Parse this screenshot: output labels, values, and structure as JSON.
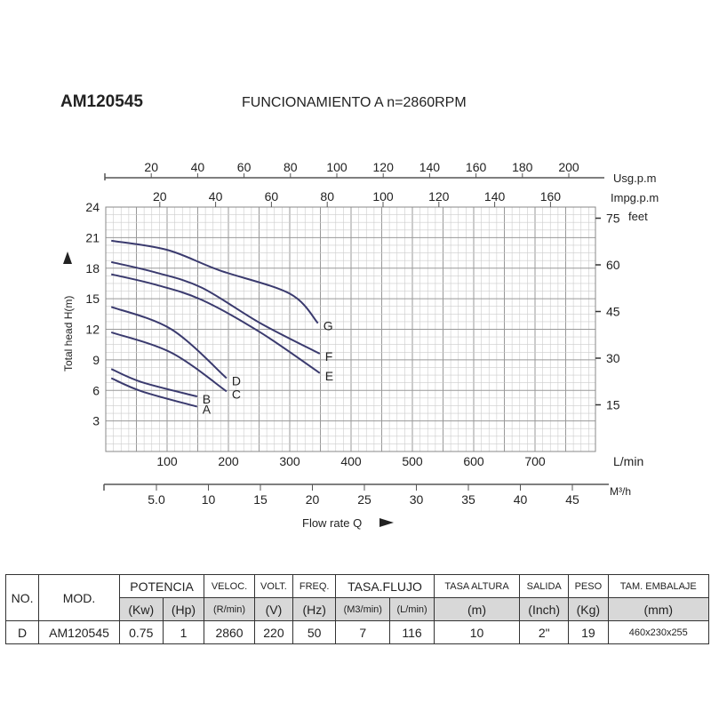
{
  "header": {
    "model": "AM120545",
    "subtitle": "FUNCIONAMIENTO A n=2860RPM"
  },
  "chart_data": {
    "type": "line",
    "xlabel": "Flow rate Q",
    "ylabel": "Total head H(m)",
    "x_unit": "L/min",
    "xlim": [
      0,
      795
    ],
    "ylim": [
      0,
      24
    ],
    "x_ticks": [
      100,
      200,
      300,
      400,
      500,
      600,
      700
    ],
    "y_ticks": [
      3,
      6,
      9,
      12,
      15,
      18,
      21,
      24
    ],
    "grid": true,
    "secondary_axes": {
      "usgpm": {
        "label": "Usg.p.m",
        "ticks": [
          20,
          40,
          60,
          80,
          100,
          120,
          140,
          160,
          180,
          200
        ]
      },
      "impgpm": {
        "label": "Impg.p.m",
        "ticks": [
          20,
          40,
          60,
          80,
          100,
          120,
          140,
          160
        ]
      },
      "feet": {
        "label": "feet",
        "ticks": [
          15,
          30,
          45,
          60,
          75
        ]
      },
      "m3h": {
        "label": "M³/h",
        "ticks": [
          "5.0",
          "10",
          "15",
          "20",
          "25",
          "30",
          "35",
          "40",
          "45"
        ]
      }
    },
    "series": [
      {
        "name": "G",
        "x": [
          9,
          100,
          185,
          300,
          346
        ],
        "y": [
          20.7,
          19.8,
          17.8,
          15.5,
          12.6
        ]
      },
      {
        "name": "F",
        "x": [
          9,
          80,
          156,
          252,
          349
        ],
        "y": [
          18.6,
          17.6,
          16.1,
          12.6,
          9.6
        ]
      },
      {
        "name": "E",
        "x": [
          9,
          80,
          156,
          252,
          349
        ],
        "y": [
          17.4,
          16.4,
          14.9,
          11.7,
          7.7
        ]
      },
      {
        "name": "D",
        "x": [
          9,
          107,
          197
        ],
        "y": [
          14.2,
          12.0,
          7.2
        ]
      },
      {
        "name": "C",
        "x": [
          9,
          107,
          197
        ],
        "y": [
          11.7,
          9.7,
          5.9
        ]
      },
      {
        "name": "B",
        "x": [
          9,
          59,
          149
        ],
        "y": [
          8.1,
          6.8,
          5.4
        ]
      },
      {
        "name": "A",
        "x": [
          9,
          59,
          149
        ],
        "y": [
          7.2,
          5.9,
          4.4
        ]
      }
    ],
    "line_color": "#3a3a6e"
  },
  "table": {
    "h1": [
      "NO.",
      "MOD.",
      "POTENCIA",
      "VELOC.",
      "VOLT.",
      "FREQ.",
      "TASA.FLUJO",
      "TASA ALTURA",
      "SALIDA",
      "PESO",
      "TAM. EMBALAJE"
    ],
    "h2": [
      "(Kw)",
      "(Hp)",
      "(R/min)",
      "(V)",
      "(Hz)",
      "(M3/min)",
      "(L/min)",
      "(m)",
      "(Inch)",
      "(Kg)",
      "(mm)"
    ],
    "row": [
      "D",
      "AM120545",
      "0.75",
      "1",
      "2860",
      "220",
      "50",
      "7",
      "116",
      "10",
      "2\"",
      "19",
      "460x230x255"
    ]
  }
}
